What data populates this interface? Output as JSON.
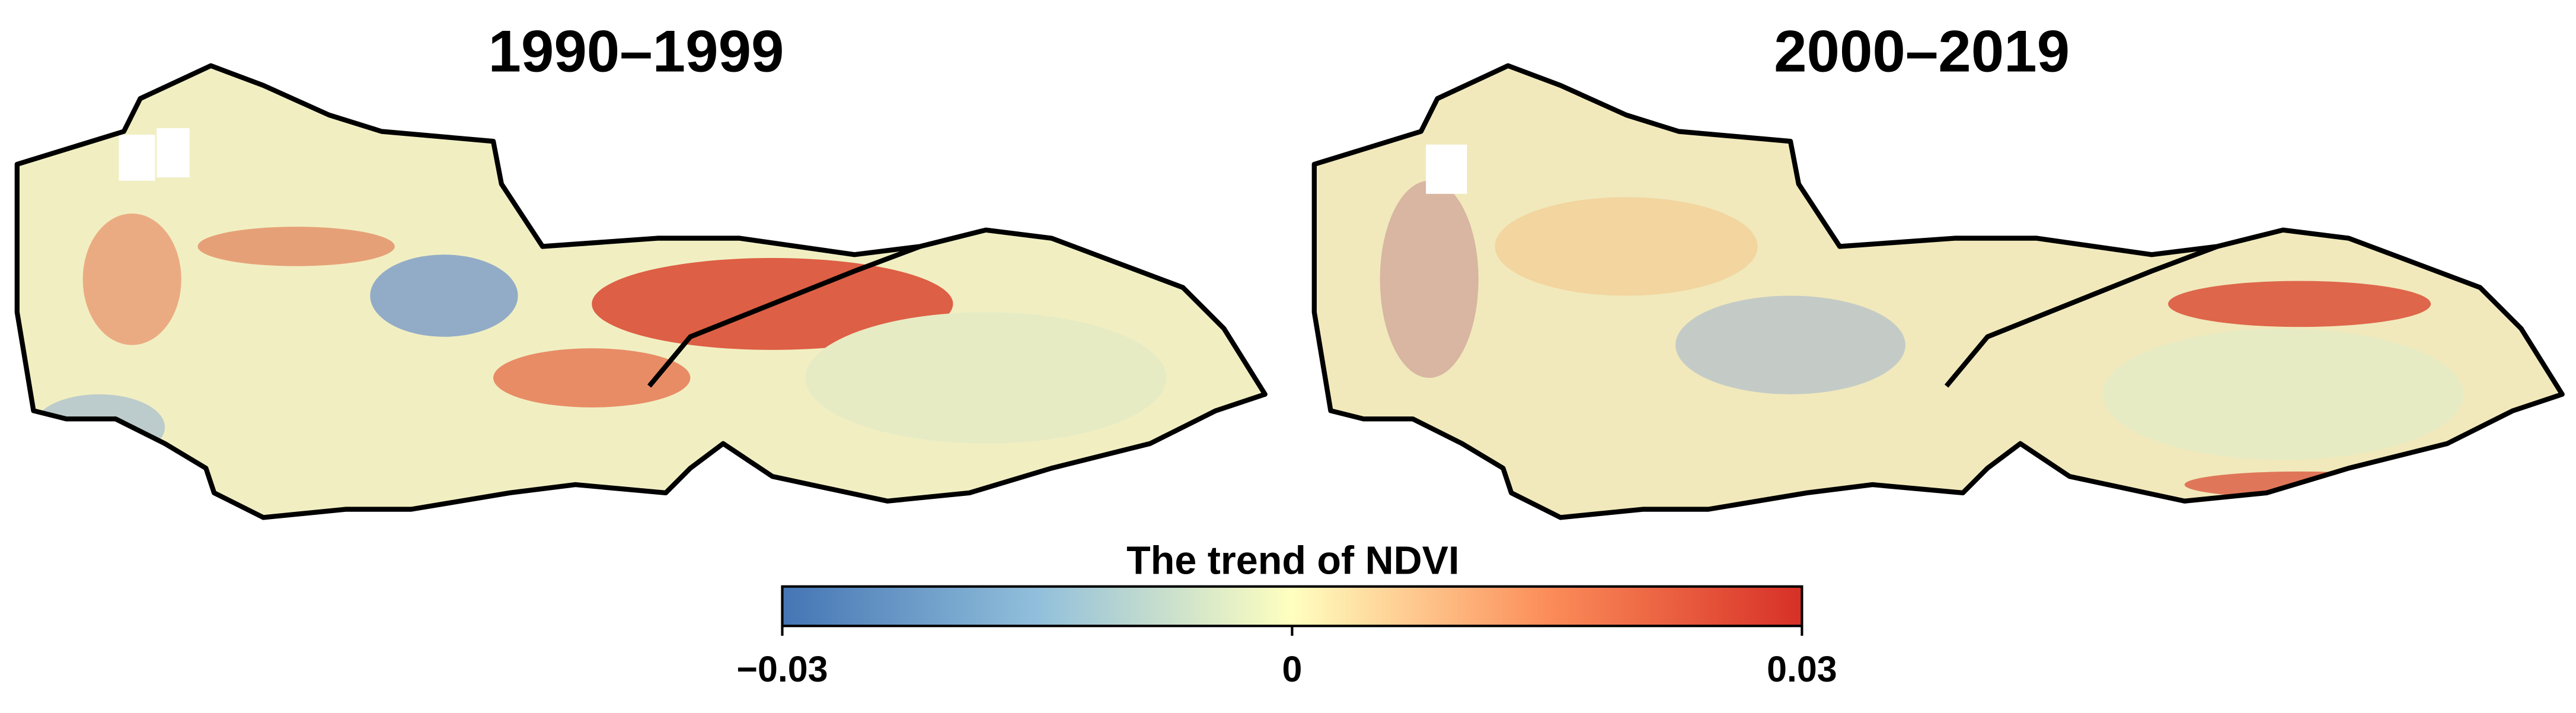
{
  "panels": [
    {
      "title": "1990–1999"
    },
    {
      "title": "2000–2019"
    }
  ],
  "colorbar": {
    "title": "The trend of NDVI",
    "lim": [
      -0.03,
      0.03
    ],
    "ticks": [
      {
        "value": -0.03,
        "label": "−0.03"
      },
      0,
      0.03
    ],
    "colors": [
      "#4575b4",
      "#91bfdb",
      "#ffffbf",
      "#fc8d59",
      "#d73027"
    ]
  }
}
